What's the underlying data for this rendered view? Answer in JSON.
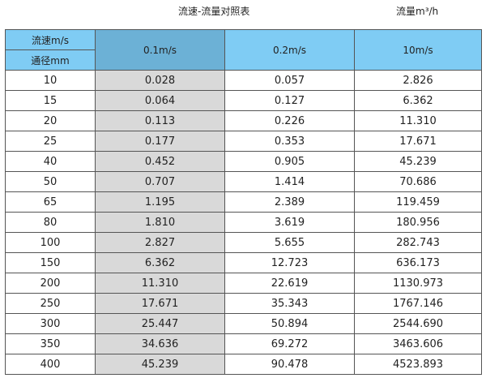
{
  "title": "流速-流量对照表",
  "unit": "流量m³/h",
  "header": {
    "velocity_label": "流速m/s",
    "diameter_label": "通径mm",
    "columns": [
      "0.1m/s",
      "0.2m/s",
      "10m/s"
    ]
  },
  "colors": {
    "header": "#7fccf4",
    "header_selected": "#6cb1d6",
    "column_shaded": "#d9d9d9"
  },
  "rows": [
    [
      "10",
      "0.028",
      "0.057",
      "2.826"
    ],
    [
      "15",
      "0.064",
      "0.127",
      "6.362"
    ],
    [
      "20",
      "0.113",
      "0.226",
      "11.310"
    ],
    [
      "25",
      "0.177",
      "0.353",
      "17.671"
    ],
    [
      "40",
      "0.452",
      "0.905",
      "45.239"
    ],
    [
      "50",
      "0.707",
      "1.414",
      "70.686"
    ],
    [
      "65",
      "1.195",
      "2.389",
      "119.459"
    ],
    [
      "80",
      "1.810",
      "3.619",
      "180.956"
    ],
    [
      "100",
      "2.827",
      "5.655",
      "282.743"
    ],
    [
      "150",
      "6.362",
      "12.723",
      "636.173"
    ],
    [
      "200",
      "11.310",
      "22.619",
      "1130.973"
    ],
    [
      "250",
      "17.671",
      "35.343",
      "1767.146"
    ],
    [
      "300",
      "25.447",
      "50.894",
      "2544.690"
    ],
    [
      "350",
      "34.636",
      "69.272",
      "3463.606"
    ],
    [
      "400",
      "45.239",
      "90.478",
      "4523.893"
    ]
  ]
}
